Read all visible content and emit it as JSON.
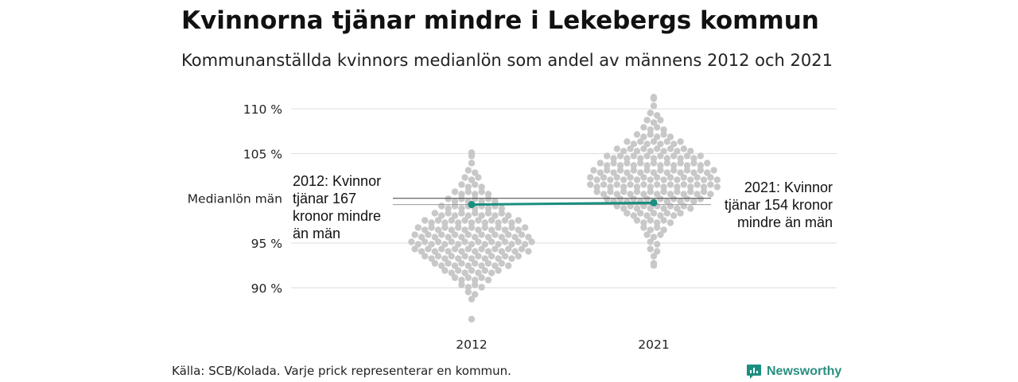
{
  "header": {
    "title": "Kvinnorna tjänar mindre i Lekebergs kommun",
    "subtitle": "Kommunanställda kvinnors medianlön som andel av männens 2012 och 2021"
  },
  "footer": {
    "source": "Källa: SCB/Kolada. Varje prick representerar en kommun.",
    "brand": "Newsworthy"
  },
  "colors": {
    "dots": "#c8c8c8",
    "highlight": "#1a8f80",
    "grid": "#dddddd",
    "reference": "#555555"
  },
  "chart_data": {
    "type": "scatter",
    "title": "Kvinnorna tjänar mindre i Lekebergs kommun",
    "subtitle": "Kommunanställda kvinnors medianlön som andel av männens 2012 och 2021",
    "categories": [
      "2012",
      "2021"
    ],
    "y_ticks": [
      {
        "value": 110,
        "label": "110 %"
      },
      {
        "value": 105,
        "label": "105 %"
      },
      {
        "value": 95,
        "label": "95 %"
      },
      {
        "value": 90,
        "label": "90 %"
      }
    ],
    "reference_line": {
      "value": 100,
      "label": "Medianlön män"
    },
    "ylim": [
      86,
      112
    ],
    "grid": true,
    "distributions": [
      {
        "category": "2012",
        "min": 86.5,
        "max": 105.1,
        "bins": [
          {
            "y": 104.6,
            "n": 1
          },
          {
            "y": 103.8,
            "n": 1
          },
          {
            "y": 103.0,
            "n": 2
          },
          {
            "y": 102.2,
            "n": 3
          },
          {
            "y": 101.4,
            "n": 4
          },
          {
            "y": 100.6,
            "n": 6
          },
          {
            "y": 99.8,
            "n": 8
          },
          {
            "y": 99.0,
            "n": 10
          },
          {
            "y": 98.2,
            "n": 12
          },
          {
            "y": 97.4,
            "n": 15
          },
          {
            "y": 96.6,
            "n": 17
          },
          {
            "y": 95.8,
            "n": 18
          },
          {
            "y": 95.0,
            "n": 19
          },
          {
            "y": 94.2,
            "n": 18
          },
          {
            "y": 93.4,
            "n": 15
          },
          {
            "y": 92.6,
            "n": 12
          },
          {
            "y": 91.8,
            "n": 9
          },
          {
            "y": 91.0,
            "n": 6
          },
          {
            "y": 90.2,
            "n": 4
          },
          {
            "y": 89.4,
            "n": 2
          },
          {
            "y": 88.6,
            "n": 1
          }
        ]
      },
      {
        "category": "2021",
        "min": 92.5,
        "max": 111.3,
        "bins": [
          {
            "y": 111.0,
            "n": 1
          },
          {
            "y": 110.2,
            "n": 1
          },
          {
            "y": 109.4,
            "n": 2
          },
          {
            "y": 108.6,
            "n": 3
          },
          {
            "y": 107.8,
            "n": 4
          },
          {
            "y": 107.0,
            "n": 6
          },
          {
            "y": 106.2,
            "n": 9
          },
          {
            "y": 105.4,
            "n": 12
          },
          {
            "y": 104.6,
            "n": 15
          },
          {
            "y": 103.8,
            "n": 17
          },
          {
            "y": 103.0,
            "n": 19
          },
          {
            "y": 102.2,
            "n": 20
          },
          {
            "y": 101.4,
            "n": 20
          },
          {
            "y": 100.6,
            "n": 18
          },
          {
            "y": 99.8,
            "n": 15
          },
          {
            "y": 99.0,
            "n": 12
          },
          {
            "y": 98.2,
            "n": 9
          },
          {
            "y": 97.4,
            "n": 6
          },
          {
            "y": 96.6,
            "n": 4
          },
          {
            "y": 95.8,
            "n": 3
          },
          {
            "y": 95.0,
            "n": 2
          },
          {
            "y": 94.2,
            "n": 2
          },
          {
            "y": 93.4,
            "n": 1
          },
          {
            "y": 92.6,
            "n": 1
          }
        ]
      }
    ],
    "series": [
      {
        "name": "Lekebergs kommun",
        "x": [
          "2012",
          "2021"
        ],
        "values": [
          99.3,
          99.5
        ]
      }
    ],
    "annotations": [
      {
        "category": "2012",
        "lines": [
          "2012: Kvinnor",
          "tjänar 167",
          "kronor mindre",
          "än män"
        ]
      },
      {
        "category": "2021",
        "lines": [
          "2021: Kvinnor",
          "tjänar 154 kronor",
          "mindre än män"
        ]
      }
    ]
  }
}
